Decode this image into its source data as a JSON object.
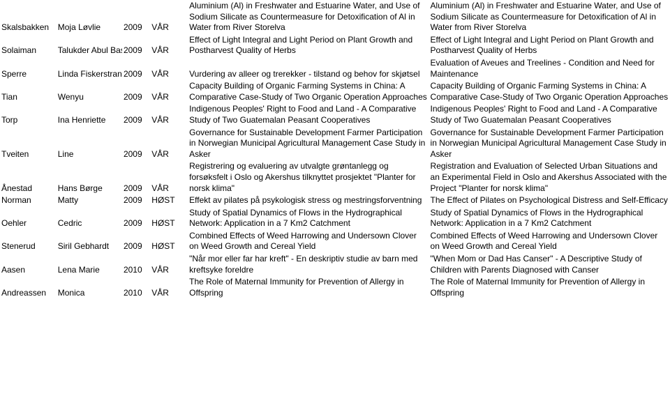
{
  "rows": [
    {
      "last": "Skalsbakken",
      "first": "Moja Løvlie",
      "year": "2009",
      "term": "VÅR",
      "no": "Aluminium (Al) in Freshwater and Estuarine Water, and Use of Sodium Silicate as Countermeasure for Detoxification of Al in Water from River Storelva",
      "en": "Aluminium (Al) in Freshwater and Estuarine Water, and Use of Sodium Silicate as Countermeasure for Detoxification of Al in Water from River Storelva"
    },
    {
      "last": "Solaiman",
      "first": "Talukder Abul Bashar M",
      "year": "2009",
      "term": "VÅR",
      "no": "Effect of Light Integral and Light Period on Plant Growth and Postharvest Quality of Herbs",
      "en": "Effect of Light Integral and Light Period on Plant Growth and Postharvest Quality of Herbs"
    },
    {
      "last": "Sperre",
      "first": "Linda Fiskerstrand",
      "year": "2009",
      "term": "VÅR",
      "no": "Vurdering av alleer og trerekker - tilstand og behov for skjøtsel",
      "en": "Evaluation of Aveues and Treelines - Condition and Need for Maintenance"
    },
    {
      "last": "Tian",
      "first": "Wenyu",
      "year": "2009",
      "term": "VÅR",
      "no": "Capacity Building of Organic Farming Systems in China: A Comparative Case-Study of Two Organic Operation Approaches",
      "en": "Capacity Building of Organic Farming Systems in China: A Comparative Case-Study of Two Organic Operation Approaches"
    },
    {
      "last": "Torp",
      "first": "Ina Henriette",
      "year": "2009",
      "term": "VÅR",
      "no": "Indigenous Peoples' Right to Food and Land - A Comparative Study of Two Guatemalan Peasant Cooperatives",
      "en": "Indigenous Peoples' Right to Food and Land - A Comparative Study of Two Guatemalan Peasant Cooperatives"
    },
    {
      "last": "Tveiten",
      "first": "Line",
      "year": "2009",
      "term": "VÅR",
      "no": "Governance for Sustainable Development Farmer Participation in Norwegian Municipal Agricultural Management Case Study in Asker",
      "en": "Governance for Sustainable Development Farmer Participation in Norwegian Municipal Agricultural Management Case Study in Asker"
    },
    {
      "last": "Ånestad",
      "first": "Hans Børge",
      "year": "2009",
      "term": "VÅR",
      "no": "Registrering og evaluering av utvalgte grøntanlegg og forsøksfelt i Oslo og Akershus tilknyttet prosjektet \"Planter for norsk klima\"",
      "en": "Registration and Evaluation of Selected Urban Situations and an Experimental Field in Oslo and Akershus Associated with the Project \"Planter for norsk klima\""
    },
    {
      "last": "Norman",
      "first": "Matty",
      "year": "2009",
      "term": "HØST",
      "no": "Effekt av pilates på psykologisk stress og mestringsforventning",
      "en": "The Effect of Pilates on Psychological Distress and Self-Efficacy"
    },
    {
      "last": "Oehler",
      "first": "Cedric",
      "year": "2009",
      "term": "HØST",
      "no": "Study of Spatial Dynamics of Flows in the Hydrographical Network: Application in a 7 Km2 Catchment",
      "en": "Study of Spatial Dynamics of Flows in the Hydrographical Network: Application in a 7 Km2 Catchment"
    },
    {
      "last": "Stenerud",
      "first": "Siril Gebhardt",
      "year": "2009",
      "term": "HØST",
      "no": "Combined Effects of Weed Harrowing and Undersown Clover on Weed Growth and Cereal Yield",
      "en": "Combined Effects of Weed Harrowing and Undersown Clover on Weed Growth and Cereal Yield"
    },
    {
      "last": "Aasen",
      "first": "Lena Marie",
      "year": "2010",
      "term": "VÅR",
      "no": "\"Når mor eller far har kreft\" - En deskriptiv studie av barn med kreftsyke foreldre",
      "en": "\"When Mom or Dad Has Canser\" - A Descriptive Study of Children with Parents Diagnosed with Canser"
    },
    {
      "last": "Andreassen",
      "first": "Monica",
      "year": "2010",
      "term": "VÅR",
      "no": "The Role of Maternal Immunity for Prevention of Allergy in Offspring",
      "en": "The Role of Maternal Immunity for Prevention of Allergy in Offspring"
    }
  ]
}
